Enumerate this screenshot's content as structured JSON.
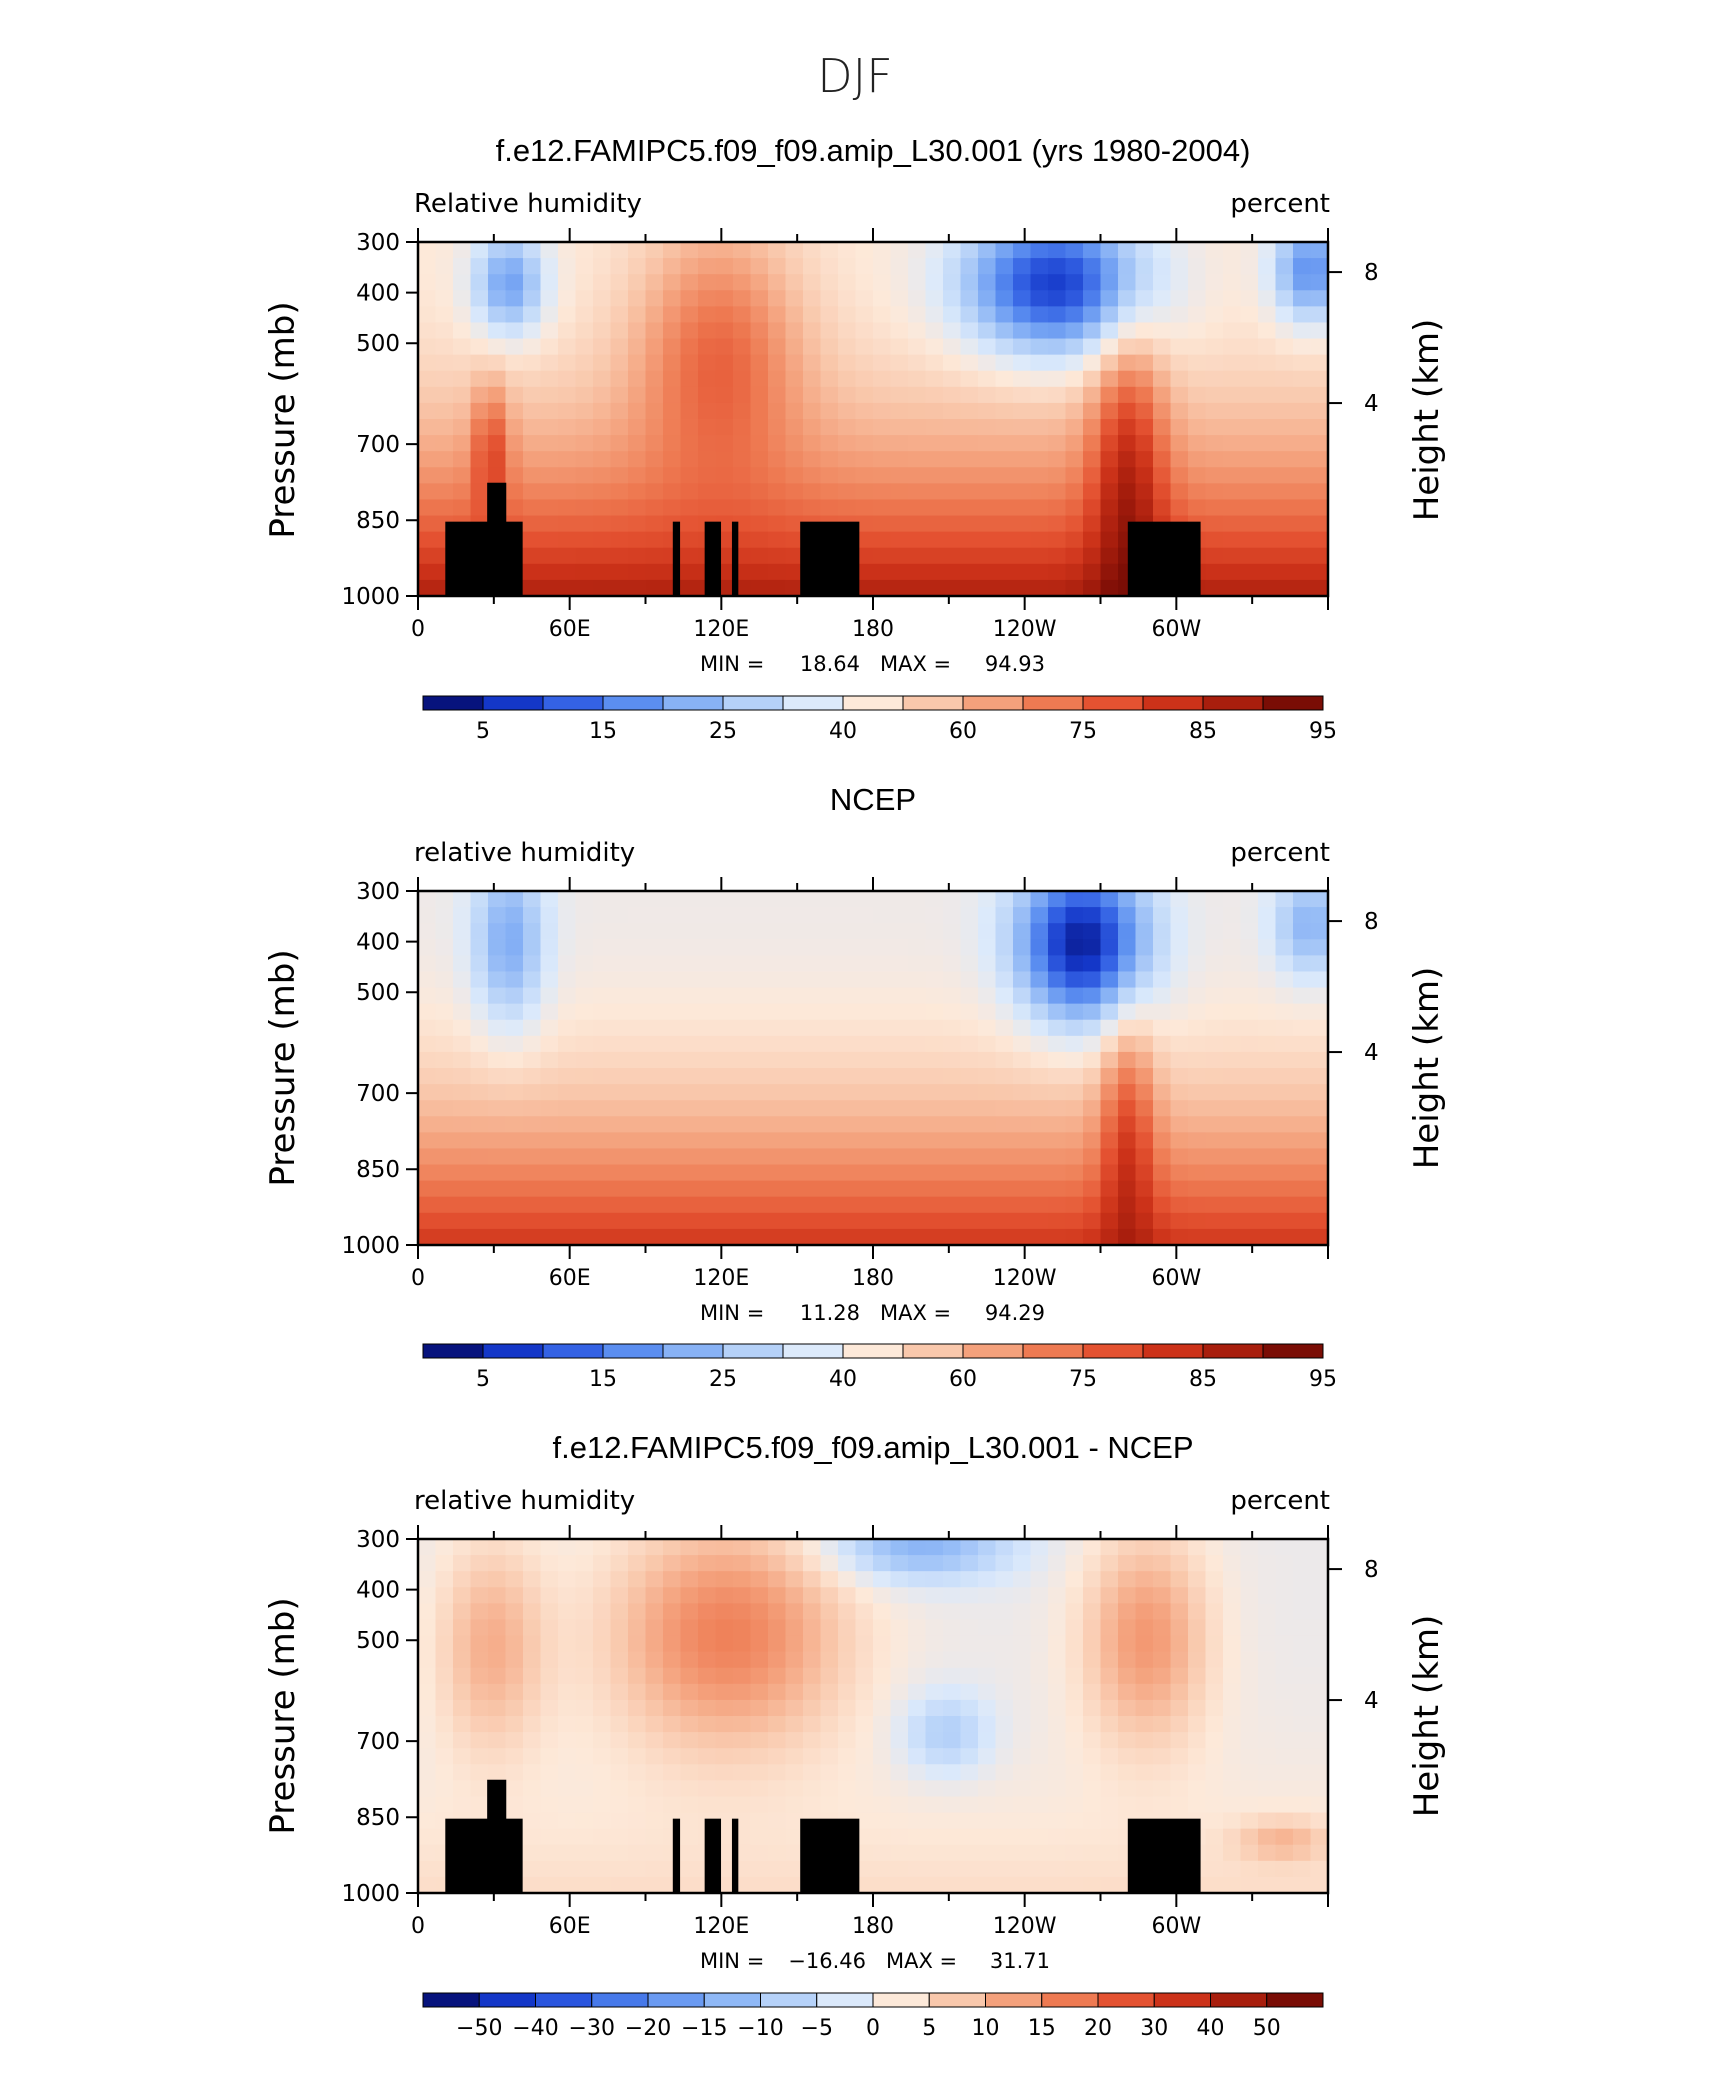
{
  "figure_title": "DJF",
  "chart_data": [
    {
      "type": "heatmap",
      "title": "f.e12.FAMIPC5.f09_f09.amip_L30.001 (yrs 1980-2004)",
      "left_label": "Relative humidity",
      "right_label": "percent",
      "ylabel": "Pressure (mb)",
      "y2label": "Height (km)",
      "xticks": [
        "0",
        "60E",
        "120E",
        "180",
        "120W",
        "60W"
      ],
      "yticks": [
        "300",
        "400",
        "500",
        "700",
        "850",
        "1000"
      ],
      "y2ticks": [
        "8",
        "4"
      ],
      "stats": {
        "min_label": "MIN =",
        "min": "18.64",
        "max_label": "MAX =",
        "max": "94.93"
      },
      "colorbar_labels": [
        "5",
        "15",
        "25",
        "40",
        "60",
        "75",
        "85",
        "95"
      ],
      "colorbar_colors": [
        "#07137d",
        "#1437c8",
        "#3462e4",
        "#5b8ef0",
        "#88b2f5",
        "#b5d1f8",
        "#dceafb",
        "#fde9d9",
        "#f9c8ac",
        "#f4a17c",
        "#ee7a52",
        "#e45231",
        "#cc3219",
        "#a81e0d",
        "#7a0d05"
      ],
      "value_range": [
        18.64,
        94.93
      ],
      "has_topography": true
    },
    {
      "type": "heatmap",
      "title": "NCEP",
      "left_label": "relative humidity",
      "right_label": "percent",
      "ylabel": "Pressure (mb)",
      "y2label": "Height (km)",
      "xticks": [
        "0",
        "60E",
        "120E",
        "180",
        "120W",
        "60W"
      ],
      "yticks": [
        "300",
        "400",
        "500",
        "700",
        "850",
        "1000"
      ],
      "y2ticks": [
        "8",
        "4"
      ],
      "stats": {
        "min_label": "MIN =",
        "min": "11.28",
        "max_label": "MAX =",
        "max": "94.29"
      },
      "colorbar_labels": [
        "5",
        "15",
        "25",
        "40",
        "60",
        "75",
        "85",
        "95"
      ],
      "colorbar_colors": [
        "#07137d",
        "#1437c8",
        "#3462e4",
        "#5b8ef0",
        "#88b2f5",
        "#b5d1f8",
        "#dceafb",
        "#fde9d9",
        "#f9c8ac",
        "#f4a17c",
        "#ee7a52",
        "#e45231",
        "#cc3219",
        "#a81e0d",
        "#7a0d05"
      ],
      "value_range": [
        11.28,
        94.29
      ],
      "has_topography": false
    },
    {
      "type": "heatmap",
      "title": "f.e12.FAMIPC5.f09_f09.amip_L30.001 - NCEP",
      "left_label": "relative humidity",
      "right_label": "percent",
      "ylabel": "Pressure (mb)",
      "y2label": "Height (km)",
      "xticks": [
        "0",
        "60E",
        "120E",
        "180",
        "120W",
        "60W"
      ],
      "yticks": [
        "300",
        "400",
        "500",
        "700",
        "850",
        "1000"
      ],
      "y2ticks": [
        "8",
        "4"
      ],
      "stats": {
        "min_label": "MIN =",
        "min": "−16.46",
        "max_label": "MAX =",
        "max": "31.71"
      },
      "colorbar_labels": [
        "−50",
        "−40",
        "−30",
        "−20",
        "−15",
        "−10",
        "−5",
        "0",
        "5",
        "10",
        "15",
        "20",
        "30",
        "40",
        "50"
      ],
      "colorbar_colors": [
        "#07137d",
        "#1437c8",
        "#2a55de",
        "#4779ea",
        "#6a9af1",
        "#8fb8f6",
        "#b6d2f9",
        "#dbe9fb",
        "#fde9d9",
        "#f9c8ac",
        "#f4a17c",
        "#ee7a52",
        "#e45231",
        "#cc3219",
        "#a81e0d",
        "#7a0d05"
      ],
      "value_range": [
        -16.46,
        31.71
      ],
      "has_topography": true
    }
  ]
}
